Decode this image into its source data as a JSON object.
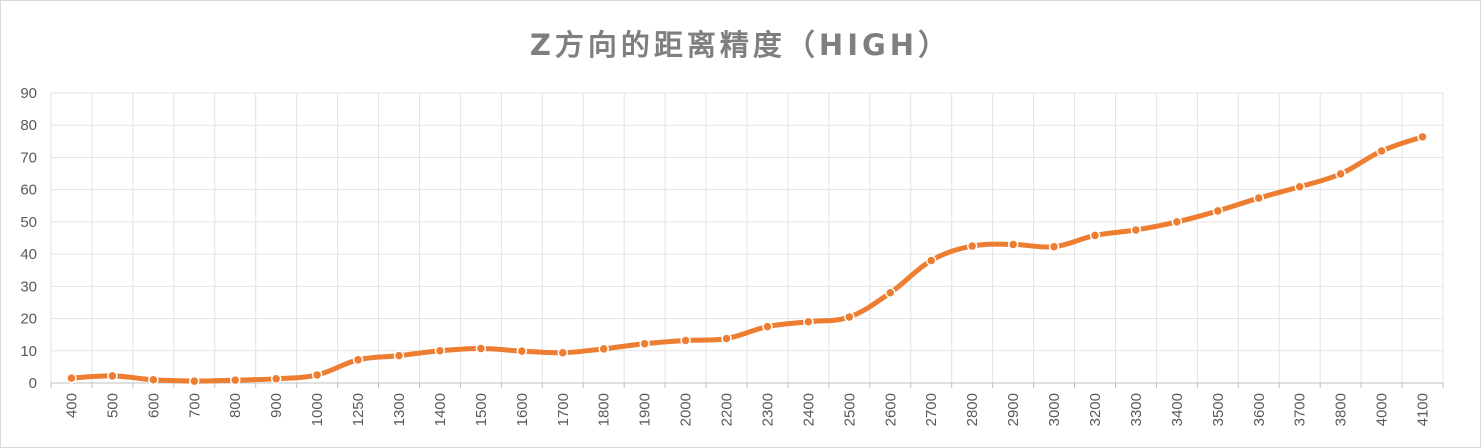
{
  "chart_data": {
    "type": "line",
    "title": "Z方向的距离精度（HIGH）",
    "xlabel": "",
    "ylabel": "",
    "ylim": [
      0,
      90
    ],
    "ytick_step": 10,
    "grid": true,
    "legend": "none",
    "smooth": true,
    "categories": [
      "400",
      "500",
      "600",
      "700",
      "800",
      "900",
      "1000",
      "1250",
      "1300",
      "1400",
      "1500",
      "1600",
      "1700",
      "1800",
      "1900",
      "2000",
      "2200",
      "2300",
      "2400",
      "2500",
      "2600",
      "2700",
      "2800",
      "2900",
      "3000",
      "3200",
      "3300",
      "3400",
      "3500",
      "3600",
      "3700",
      "3800",
      "4000",
      "4100"
    ],
    "series": [
      {
        "name": "Z方向的距离精度",
        "color": "#ed7d31",
        "values": [
          1.5,
          2.2,
          1.0,
          0.6,
          0.9,
          1.3,
          2.5,
          7.2,
          8.5,
          10.0,
          10.7,
          9.9,
          9.4,
          10.6,
          12.2,
          13.2,
          13.8,
          17.5,
          19.0,
          20.5,
          28.0,
          38.0,
          42.5,
          43.0,
          42.3,
          45.8,
          47.5,
          50.0,
          53.4,
          57.4,
          60.9,
          64.9,
          72.0,
          76.4
        ]
      }
    ]
  }
}
